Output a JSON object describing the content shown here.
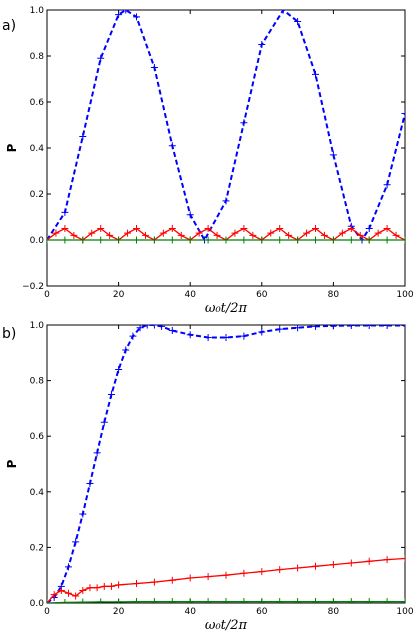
{
  "chart_data": [
    {
      "type": "line",
      "panel_label": "a)",
      "xlabel": "ω₀t/2π",
      "ylabel": "P",
      "xlim": [
        0,
        100
      ],
      "ylim": [
        -0.2,
        1.0
      ],
      "xticks": [
        "0",
        "20",
        "40",
        "60",
        "80",
        "100"
      ],
      "yticks": [
        "−0.2",
        "0.0",
        "0.2",
        "0.4",
        "0.6",
        "0.8",
        "1.0"
      ],
      "grid": false,
      "series": [
        {
          "color": "#0000ff",
          "line": "dashed",
          "marker": "+",
          "x": [
            0,
            5,
            10,
            15,
            20,
            22,
            25,
            30,
            35,
            40,
            44,
            50,
            55,
            60,
            66,
            70,
            75,
            80,
            85,
            88,
            90,
            95,
            100
          ],
          "y": [
            0.0,
            0.12,
            0.45,
            0.79,
            0.98,
            1.0,
            0.97,
            0.75,
            0.41,
            0.11,
            0.0,
            0.17,
            0.51,
            0.85,
            1.0,
            0.95,
            0.72,
            0.37,
            0.06,
            0.0,
            0.05,
            0.24,
            0.55
          ]
        },
        {
          "color": "#ff0000",
          "line": "solid",
          "marker": "+",
          "x": [
            0,
            2.5,
            5,
            7.5,
            10,
            12.5,
            15,
            17.5,
            20,
            22.5,
            25,
            27.5,
            30,
            32.5,
            35,
            37.5,
            40,
            42.5,
            45,
            47.5,
            50,
            52.5,
            55,
            57.5,
            60,
            62.5,
            65,
            67.5,
            70,
            72.5,
            75,
            77.5,
            80,
            82.5,
            85,
            87.5,
            90,
            92.5,
            95,
            97.5,
            100
          ],
          "y": [
            0.0,
            0.03,
            0.05,
            0.02,
            0.0,
            0.03,
            0.05,
            0.02,
            0.0,
            0.03,
            0.05,
            0.02,
            0.0,
            0.03,
            0.05,
            0.02,
            0.0,
            0.03,
            0.05,
            0.02,
            0.0,
            0.03,
            0.05,
            0.02,
            0.0,
            0.03,
            0.05,
            0.02,
            0.0,
            0.03,
            0.05,
            0.02,
            0.0,
            0.03,
            0.05,
            0.02,
            0.0,
            0.03,
            0.05,
            0.02,
            0.0
          ]
        },
        {
          "color": "#008000",
          "line": "solid",
          "marker": "+",
          "x": [
            0,
            5,
            10,
            15,
            20,
            25,
            30,
            35,
            40,
            45,
            50,
            55,
            60,
            65,
            70,
            75,
            80,
            85,
            90,
            95,
            100
          ],
          "y": [
            0,
            0,
            0,
            0,
            0,
            0,
            0,
            0,
            0,
            0,
            0,
            0,
            0,
            0,
            0,
            0,
            0,
            0,
            0,
            0,
            0
          ]
        }
      ]
    },
    {
      "type": "line",
      "panel_label": "b)",
      "xlabel": "ω₀t/2π",
      "ylabel": "P",
      "xlim": [
        0,
        100
      ],
      "ylim": [
        0.0,
        1.0
      ],
      "xticks": [
        "0",
        "20",
        "40",
        "60",
        "80",
        "100"
      ],
      "yticks": [
        "0.0",
        "0.2",
        "0.4",
        "0.6",
        "0.8",
        "1.0"
      ],
      "grid": false,
      "series": [
        {
          "color": "#0000ff",
          "line": "dashed",
          "marker": "+",
          "x": [
            0,
            2,
            4,
            6,
            8,
            10,
            12,
            14,
            16,
            18,
            20,
            22,
            24,
            26,
            28,
            30,
            32,
            35,
            40,
            45,
            50,
            55,
            60,
            65,
            70,
            75,
            80,
            85,
            90,
            95,
            100
          ],
          "y": [
            0.0,
            0.02,
            0.06,
            0.13,
            0.22,
            0.32,
            0.43,
            0.54,
            0.65,
            0.75,
            0.84,
            0.91,
            0.96,
            0.99,
            1.0,
            1.0,
            0.995,
            0.98,
            0.965,
            0.955,
            0.955,
            0.96,
            0.975,
            0.985,
            0.99,
            0.995,
            0.997,
            0.998,
            0.998,
            0.998,
            0.998
          ]
        },
        {
          "color": "#ff0000",
          "line": "solid",
          "marker": "+",
          "x": [
            0,
            2,
            4,
            6,
            8,
            10,
            12,
            14,
            16,
            18,
            20,
            25,
            30,
            35,
            40,
            45,
            50,
            55,
            60,
            65,
            70,
            75,
            80,
            85,
            90,
            95,
            100
          ],
          "y": [
            0.0,
            0.03,
            0.045,
            0.035,
            0.025,
            0.045,
            0.055,
            0.055,
            0.06,
            0.06,
            0.065,
            0.07,
            0.075,
            0.082,
            0.09,
            0.095,
            0.1,
            0.107,
            0.113,
            0.12,
            0.126,
            0.132,
            0.138,
            0.144,
            0.15,
            0.156,
            0.16
          ]
        },
        {
          "color": "#008000",
          "line": "solid",
          "marker": "+",
          "x": [
            0,
            5,
            10,
            15,
            20,
            25,
            30,
            35,
            40,
            45,
            50,
            55,
            60,
            65,
            70,
            75,
            80,
            85,
            90,
            95,
            100
          ],
          "y": [
            0,
            0.002,
            0.003,
            0.004,
            0.004,
            0.005,
            0.005,
            0.005,
            0.005,
            0.005,
            0.005,
            0.005,
            0.005,
            0.005,
            0.005,
            0.005,
            0.005,
            0.005,
            0.005,
            0.005,
            0.005
          ]
        }
      ]
    }
  ]
}
